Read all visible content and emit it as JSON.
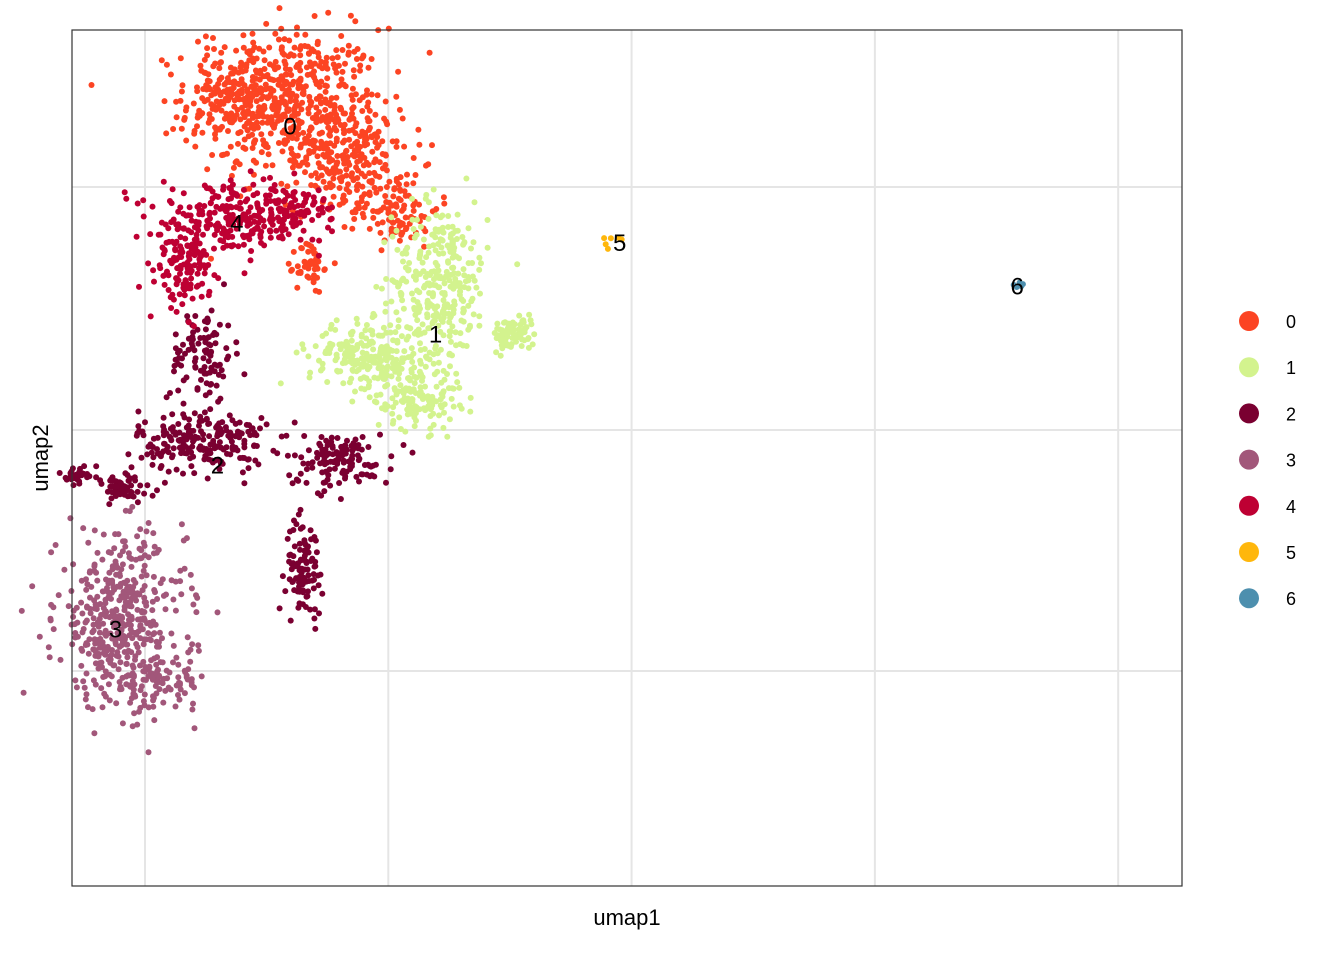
{
  "chart_data": {
    "type": "scatter",
    "title": "",
    "xlabel": "umap1",
    "ylabel": "umap2",
    "xlim": [
      -4.3,
      18.6
    ],
    "ylim": [
      -11.8,
      5.9
    ],
    "grid": true,
    "legend_position": "right",
    "legend": [
      {
        "label": "0",
        "color": "#FC4423"
      },
      {
        "label": "1",
        "color": "#D3F38E"
      },
      {
        "label": "2",
        "color": "#7A0031"
      },
      {
        "label": "3",
        "color": "#A2577A"
      },
      {
        "label": "4",
        "color": "#BE0033"
      },
      {
        "label": "5",
        "color": "#FFB70C"
      },
      {
        "label": "6",
        "color": "#4D8FAE"
      }
    ],
    "cluster_labels": [
      {
        "text": "0",
        "x": 0.2,
        "y": 3.9
      },
      {
        "text": "1",
        "x": 3.2,
        "y": -0.4
      },
      {
        "text": "2",
        "x": -1.3,
        "y": -3.1
      },
      {
        "text": "3",
        "x": -3.4,
        "y": -6.5
      },
      {
        "text": "4",
        "x": -0.9,
        "y": 1.9
      },
      {
        "text": "5",
        "x": 7.0,
        "y": 1.5
      },
      {
        "text": "6",
        "x": 15.2,
        "y": 0.6
      }
    ],
    "clusters": [
      {
        "name": "0",
        "color": "#FC4423",
        "n": 1000,
        "blobs": [
          {
            "cx": 0.1,
            "cy": 4.4,
            "rx": 1.8,
            "ry": 1.4,
            "w": 0.55
          },
          {
            "cx": 1.4,
            "cy": 3.2,
            "rx": 1.0,
            "ry": 1.0,
            "w": 0.2
          },
          {
            "cx": -1.0,
            "cy": 4.6,
            "rx": 0.9,
            "ry": 0.7,
            "w": 0.1
          },
          {
            "cx": 2.4,
            "cy": 2.2,
            "rx": 0.8,
            "ry": 0.7,
            "w": 0.1
          },
          {
            "cx": 0.6,
            "cy": 1.0,
            "rx": 0.25,
            "ry": 0.5,
            "w": 0.05
          }
        ]
      },
      {
        "name": "1",
        "color": "#D3F38E",
        "n": 760,
        "blobs": [
          {
            "cx": 3.3,
            "cy": 0.7,
            "rx": 0.9,
            "ry": 1.5,
            "w": 0.4
          },
          {
            "cx": 1.8,
            "cy": -0.8,
            "rx": 1.1,
            "ry": 0.6,
            "w": 0.3
          },
          {
            "cx": 4.8,
            "cy": -0.4,
            "rx": 0.4,
            "ry": 0.3,
            "w": 0.12
          },
          {
            "cx": 2.8,
            "cy": -1.7,
            "rx": 0.8,
            "ry": 0.6,
            "w": 0.18
          }
        ]
      },
      {
        "name": "2",
        "color": "#7A0031",
        "n": 640,
        "blobs": [
          {
            "cx": -1.6,
            "cy": -2.6,
            "rx": 1.2,
            "ry": 0.6,
            "w": 0.35
          },
          {
            "cx": 1.2,
            "cy": -3.0,
            "rx": 1.0,
            "ry": 0.5,
            "w": 0.2
          },
          {
            "cx": 0.5,
            "cy": -5.2,
            "rx": 0.35,
            "ry": 0.9,
            "w": 0.15
          },
          {
            "cx": -1.6,
            "cy": -0.8,
            "rx": 0.6,
            "ry": 0.9,
            "w": 0.15
          },
          {
            "cx": -4.2,
            "cy": -3.3,
            "rx": 0.2,
            "ry": 0.15,
            "w": 0.05
          },
          {
            "cx": -3.3,
            "cy": -3.6,
            "rx": 0.6,
            "ry": 0.3,
            "w": 0.1
          }
        ]
      },
      {
        "name": "3",
        "color": "#A2577A",
        "n": 520,
        "blobs": [
          {
            "cx": -3.3,
            "cy": -6.3,
            "rx": 1.2,
            "ry": 1.6,
            "w": 0.85
          },
          {
            "cx": -2.5,
            "cy": -7.6,
            "rx": 0.8,
            "ry": 0.5,
            "w": 0.15
          }
        ]
      },
      {
        "name": "4",
        "color": "#BE0033",
        "n": 420,
        "blobs": [
          {
            "cx": -0.9,
            "cy": 2.0,
            "rx": 1.4,
            "ry": 0.6,
            "w": 0.55
          },
          {
            "cx": -2.0,
            "cy": 1.0,
            "rx": 0.5,
            "ry": 0.8,
            "w": 0.3
          },
          {
            "cx": 0.4,
            "cy": 2.2,
            "rx": 0.7,
            "ry": 0.5,
            "w": 0.15
          }
        ]
      },
      {
        "name": "5",
        "color": "#FFB70C",
        "n": 6,
        "blobs": [
          {
            "cx": 6.8,
            "cy": 1.5,
            "rx": 0.3,
            "ry": 0.2,
            "w": 1.0
          }
        ]
      },
      {
        "name": "6",
        "color": "#4D8FAE",
        "n": 5,
        "blobs": [
          {
            "cx": 15.2,
            "cy": 0.6,
            "rx": 0.12,
            "ry": 0.1,
            "w": 1.0
          }
        ]
      }
    ]
  }
}
